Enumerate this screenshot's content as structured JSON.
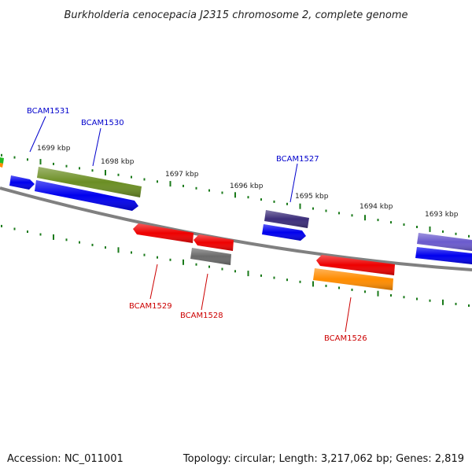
{
  "title": "Burkholderia cenocepacia J2315 chromosome 2, complete genome",
  "accession_text": "Accession: NC_011001",
  "summary_text": "Topology: circular; Length: 3,217,062 bp; Genes: 2,819",
  "scale_labels": [
    "1699 kbp",
    "1698 kbp",
    "1697 kbp",
    "1696 kbp",
    "1695 kbp",
    "1694 kbp",
    "1693 kbp"
  ],
  "gene_labels": {
    "BCAM1531": "BCAM1531",
    "BCAM1530": "BCAM1530",
    "BCAM1527": "BCAM1527",
    "BCAM1529": "BCAM1529",
    "BCAM1528": "BCAM1528",
    "BCAM1526": "BCAM1526"
  },
  "colors": {
    "forward_label": "#0000cc",
    "reverse_label": "#cc0000",
    "backbone": "#808080",
    "tick": "#1a7a1a",
    "blue": "#0000ee",
    "red": "#ee0000",
    "olive": "#6b8e23",
    "navy": "#3c2e7a",
    "grey": "#6a6a6a",
    "orange": "#ff8c00",
    "violet": "#6a5acd",
    "green": "#22bb22"
  }
}
